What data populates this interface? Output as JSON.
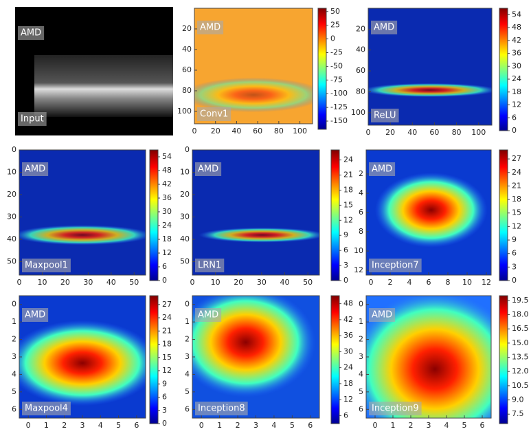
{
  "chart_data": [
    {
      "type": "image",
      "title": "Input",
      "annotation": "AMD"
    },
    {
      "type": "heatmap",
      "title": "Conv1",
      "annotation": "AMD",
      "xlim": [
        0,
        112
      ],
      "ylim": [
        0,
        112
      ],
      "xticks": [
        0,
        20,
        40,
        60,
        80,
        100
      ],
      "yticks": [
        20,
        40,
        60,
        80,
        100
      ],
      "clim": [
        -165,
        56
      ],
      "cticks": [
        50,
        25,
        0,
        -25,
        -50,
        -75,
        -100,
        -125,
        -150
      ]
    },
    {
      "type": "heatmap",
      "title": "ReLU",
      "annotation": "AMD",
      "xlim": [
        0,
        112
      ],
      "ylim": [
        0,
        112
      ],
      "xticks": [
        0,
        20,
        40,
        60,
        80,
        100
      ],
      "yticks": [
        20,
        40,
        60,
        80,
        100
      ],
      "clim": [
        0,
        57
      ],
      "cticks": [
        54,
        48,
        42,
        36,
        30,
        24,
        18,
        12,
        6,
        0
      ]
    },
    {
      "type": "heatmap",
      "title": "Maxpool1",
      "annotation": "AMD",
      "xlim": [
        0,
        55
      ],
      "ylim": [
        0,
        56
      ],
      "xticks": [
        0,
        10,
        20,
        30,
        40,
        50
      ],
      "yticks": [
        0,
        10,
        20,
        30,
        40,
        50
      ],
      "clim": [
        0,
        57
      ],
      "cticks": [
        54,
        48,
        42,
        36,
        30,
        24,
        18,
        12,
        6,
        0
      ]
    },
    {
      "type": "heatmap",
      "title": "LRN1",
      "annotation": "AMD",
      "xlim": [
        0,
        55
      ],
      "ylim": [
        0,
        56
      ],
      "xticks": [
        0,
        10,
        20,
        30,
        40,
        50
      ],
      "yticks": [
        0,
        10,
        20,
        30,
        40,
        50
      ],
      "clim": [
        0,
        26
      ],
      "cticks": [
        24,
        21,
        18,
        15,
        12,
        9,
        6,
        3,
        0
      ]
    },
    {
      "type": "heatmap",
      "title": "Inception7",
      "annotation": "AMD",
      "xlim": [
        -0.5,
        12.5
      ],
      "ylim": [
        -0.5,
        12.5
      ],
      "xticks": [
        0,
        2,
        4,
        6,
        8,
        10,
        12
      ],
      "yticks": [
        2,
        4,
        6,
        8,
        10,
        12
      ],
      "clim": [
        0,
        29
      ],
      "cticks": [
        27,
        24,
        21,
        18,
        15,
        12,
        9,
        6,
        3,
        0
      ]
    },
    {
      "type": "heatmap",
      "title": "Maxpool4",
      "annotation": "AMD",
      "xlim": [
        -0.5,
        6.5
      ],
      "ylim": [
        -0.5,
        6.5
      ],
      "xticks": [
        0,
        1,
        2,
        3,
        4,
        5,
        6
      ],
      "yticks": [
        0,
        1,
        2,
        3,
        4,
        5,
        6
      ],
      "clim": [
        0,
        29
      ],
      "cticks": [
        27,
        24,
        21,
        18,
        15,
        12,
        9,
        6,
        3,
        0
      ]
    },
    {
      "type": "heatmap",
      "title": "Inception8",
      "annotation": "AMD",
      "xlim": [
        -0.5,
        6.5
      ],
      "ylim": [
        -0.5,
        6.5
      ],
      "xticks": [
        0,
        1,
        2,
        3,
        4,
        5,
        6
      ],
      "yticks": [
        0,
        1,
        2,
        3,
        4,
        5,
        6
      ],
      "clim": [
        3,
        51
      ],
      "cticks": [
        48,
        42,
        36,
        30,
        24,
        18,
        12,
        6
      ]
    },
    {
      "type": "heatmap",
      "title": "Inception9",
      "annotation": "AMD",
      "xlim": [
        -0.5,
        6.5
      ],
      "ylim": [
        -0.5,
        6.5
      ],
      "xticks": [
        0,
        1,
        2,
        3,
        4,
        5,
        6
      ],
      "yticks": [
        0,
        1,
        2,
        3,
        4,
        5,
        6
      ],
      "clim": [
        6.5,
        20
      ],
      "cticks": [
        19.5,
        {
          "value": 18,
          "label": "18.0"
        },
        16.5,
        {
          "value": 15,
          "label": "15.0"
        },
        13.5,
        {
          "value": 12,
          "label": "12.0"
        },
        10.5,
        {
          "value": 9,
          "label": "9.0"
        },
        7.5
      ]
    }
  ]
}
